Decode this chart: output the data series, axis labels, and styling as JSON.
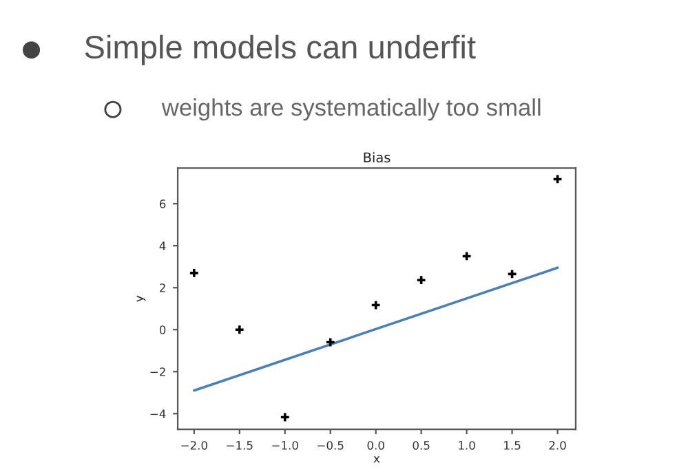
{
  "chart_data": {
    "type": "scatter",
    "title": "Bias",
    "xlabel": "x",
    "ylabel": "y",
    "annotations": [
      "Simple models can underfit",
      "weights are systematically too small"
    ],
    "series": [
      {
        "color": "#000000",
        "marker": "cross",
        "x": [
          -2.0,
          -1.5,
          -1.0,
          -0.5,
          0.0,
          0.5,
          1.0,
          1.5,
          2.0
        ],
        "values": [
          2.7,
          0.0,
          -4.17,
          -0.6,
          1.17,
          2.36,
          3.5,
          2.65,
          7.17
        ]
      },
      {
        "type": "line",
        "color": "#4c7fb5",
        "x": [
          -2.0,
          2.0
        ],
        "values": [
          -2.9,
          2.95
        ]
      }
    ],
    "xlim": [
      -2.18,
      2.2
    ],
    "xticks": [
      {
        "value": -2.0,
        "label": "−2.0"
      },
      {
        "value": -1.5,
        "label": "−1.5"
      },
      {
        "value": -1.0,
        "label": "−1.0"
      },
      {
        "value": -0.5,
        "label": "−0.5"
      },
      {
        "value": 0.0,
        "label": "0.0"
      },
      {
        "value": 0.5,
        "label": "0.5"
      },
      {
        "value": 1.0,
        "label": "1.0"
      },
      {
        "value": 1.5,
        "label": "1.5"
      },
      {
        "value": 2.0,
        "label": "2.0"
      }
    ],
    "ylim": [
      -4.75,
      7.7
    ],
    "yticks": [
      {
        "value": -4,
        "label": "−4"
      },
      {
        "value": -2,
        "label": "−2"
      },
      0,
      2,
      4,
      6
    ],
    "grid": false,
    "legend": false
  }
}
